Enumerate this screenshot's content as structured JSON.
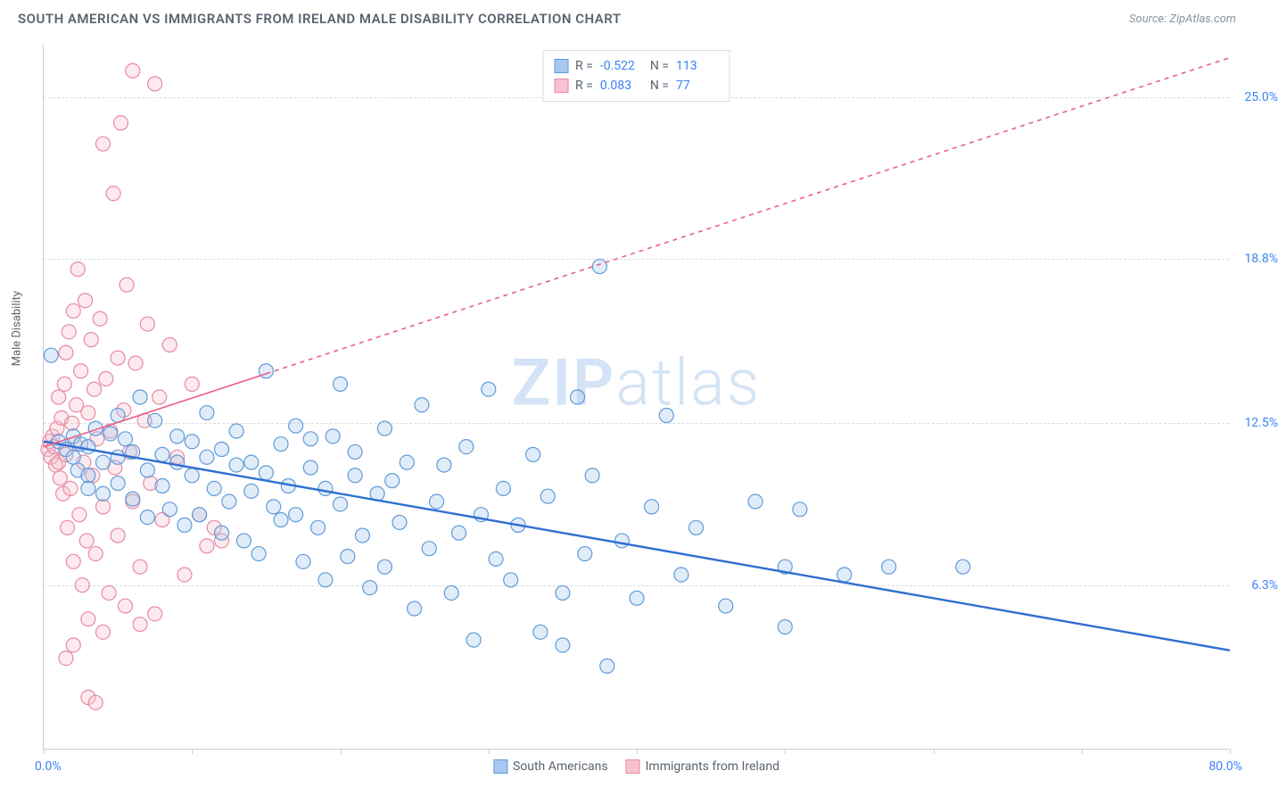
{
  "title": "SOUTH AMERICAN VS IMMIGRANTS FROM IRELAND MALE DISABILITY CORRELATION CHART",
  "source": "Source: ZipAtlas.com",
  "watermark_bold": "ZIP",
  "watermark_light": "atlas",
  "y_axis_title": "Male Disability",
  "x_min_label": "0.0%",
  "x_max_label": "80.0%",
  "chart": {
    "type": "scatter",
    "xlim": [
      0,
      80
    ],
    "ylim": [
      0,
      27
    ],
    "y_gridlines": [
      6.3,
      12.5,
      18.8,
      25.0
    ],
    "y_tick_labels": [
      "6.3%",
      "12.5%",
      "18.8%",
      "25.0%"
    ],
    "x_ticks": [
      0,
      10,
      20,
      30,
      40,
      50,
      60,
      70,
      80
    ],
    "background_color": "#ffffff",
    "grid_color": "#d8dce2",
    "axis_color": "#c8ccd2",
    "label_color": "#3b82f6",
    "marker_radius": 8,
    "marker_stroke_width": 1.2,
    "marker_fill_opacity": 0.35,
    "series": [
      {
        "name": "South Americans",
        "color_fill": "#a9c8ef",
        "color_stroke": "#5f9bd8",
        "R": "-0.522",
        "N": "113",
        "trend": {
          "x1": 0,
          "y1": 11.8,
          "x2": 80,
          "y2": 3.8,
          "stroke": "#2f6fd1",
          "width": 2.4,
          "dash": ""
        },
        "points": [
          [
            0.5,
            15.1
          ],
          [
            1,
            11.8
          ],
          [
            1.5,
            11.5
          ],
          [
            2,
            11.2
          ],
          [
            2,
            12.0
          ],
          [
            2.3,
            10.7
          ],
          [
            2.5,
            11.7
          ],
          [
            3,
            11.6
          ],
          [
            3,
            10.5
          ],
          [
            3.5,
            12.3
          ],
          [
            4,
            11.0
          ],
          [
            4,
            9.8
          ],
          [
            4.5,
            12.1
          ],
          [
            5,
            11.2
          ],
          [
            5,
            10.2
          ],
          [
            5.5,
            11.9
          ],
          [
            6,
            9.6
          ],
          [
            6,
            11.4
          ],
          [
            6.5,
            13.5
          ],
          [
            7,
            10.7
          ],
          [
            7,
            8.9
          ],
          [
            7.5,
            12.6
          ],
          [
            8,
            11.3
          ],
          [
            8,
            10.1
          ],
          [
            8.5,
            9.2
          ],
          [
            9,
            12.0
          ],
          [
            9,
            11.0
          ],
          [
            9.5,
            8.6
          ],
          [
            10,
            10.5
          ],
          [
            10,
            11.8
          ],
          [
            10.5,
            9.0
          ],
          [
            11,
            11.2
          ],
          [
            11,
            12.9
          ],
          [
            11.5,
            10.0
          ],
          [
            12,
            8.3
          ],
          [
            12,
            11.5
          ],
          [
            12.5,
            9.5
          ],
          [
            13,
            10.9
          ],
          [
            13,
            12.2
          ],
          [
            13.5,
            8.0
          ],
          [
            14,
            11.0
          ],
          [
            14,
            9.9
          ],
          [
            14.5,
            7.5
          ],
          [
            15,
            14.5
          ],
          [
            15,
            10.6
          ],
          [
            15.5,
            9.3
          ],
          [
            16,
            11.7
          ],
          [
            16,
            8.8
          ],
          [
            16.5,
            10.1
          ],
          [
            17,
            12.4
          ],
          [
            17,
            9.0
          ],
          [
            17.5,
            7.2
          ],
          [
            18,
            10.8
          ],
          [
            18,
            11.9
          ],
          [
            18.5,
            8.5
          ],
          [
            19,
            6.5
          ],
          [
            19,
            10.0
          ],
          [
            19.5,
            12.0
          ],
          [
            20,
            14.0
          ],
          [
            20,
            9.4
          ],
          [
            20.5,
            7.4
          ],
          [
            21,
            10.5
          ],
          [
            21,
            11.4
          ],
          [
            21.5,
            8.2
          ],
          [
            22,
            6.2
          ],
          [
            22.5,
            9.8
          ],
          [
            23,
            12.3
          ],
          [
            23,
            7.0
          ],
          [
            23.5,
            10.3
          ],
          [
            24,
            8.7
          ],
          [
            24.5,
            11.0
          ],
          [
            25,
            5.4
          ],
          [
            25.5,
            13.2
          ],
          [
            26,
            7.7
          ],
          [
            26.5,
            9.5
          ],
          [
            27,
            10.9
          ],
          [
            27.5,
            6.0
          ],
          [
            28,
            8.3
          ],
          [
            28.5,
            11.6
          ],
          [
            29,
            4.2
          ],
          [
            29.5,
            9.0
          ],
          [
            30,
            13.8
          ],
          [
            30.5,
            7.3
          ],
          [
            31,
            10.0
          ],
          [
            31.5,
            6.5
          ],
          [
            32,
            8.6
          ],
          [
            33,
            11.3
          ],
          [
            33.5,
            4.5
          ],
          [
            34,
            9.7
          ],
          [
            35,
            6.0
          ],
          [
            35,
            4.0
          ],
          [
            36,
            13.5
          ],
          [
            36.5,
            7.5
          ],
          [
            37,
            10.5
          ],
          [
            37.5,
            18.5
          ],
          [
            38,
            3.2
          ],
          [
            39,
            8.0
          ],
          [
            40,
            5.8
          ],
          [
            41,
            9.3
          ],
          [
            42,
            12.8
          ],
          [
            43,
            6.7
          ],
          [
            44,
            8.5
          ],
          [
            46,
            5.5
          ],
          [
            48,
            9.5
          ],
          [
            50,
            7.0
          ],
          [
            51,
            9.2
          ],
          [
            54,
            6.7
          ],
          [
            57,
            7.0
          ],
          [
            62,
            7.0
          ],
          [
            50,
            4.7
          ],
          [
            3.0,
            10.0
          ],
          [
            5.0,
            12.8
          ]
        ]
      },
      {
        "name": "Immigrants from Ireland",
        "color_fill": "#f6c2cf",
        "color_stroke": "#e88aa3",
        "R": "0.083",
        "N": "77",
        "trend": {
          "x1": 0,
          "y1": 11.6,
          "x2": 80,
          "y2": 26.5,
          "stroke": "#e75f86",
          "width": 1.6,
          "dash": "5,5",
          "solid_until_x": 15
        },
        "points": [
          [
            0.3,
            11.5
          ],
          [
            0.4,
            11.8
          ],
          [
            0.5,
            11.2
          ],
          [
            0.6,
            12.0
          ],
          [
            0.7,
            11.6
          ],
          [
            0.8,
            10.9
          ],
          [
            0.9,
            12.3
          ],
          [
            1.0,
            11.0
          ],
          [
            1.0,
            13.5
          ],
          [
            1.1,
            10.4
          ],
          [
            1.2,
            12.7
          ],
          [
            1.3,
            9.8
          ],
          [
            1.4,
            14.0
          ],
          [
            1.5,
            11.3
          ],
          [
            1.5,
            15.2
          ],
          [
            1.6,
            8.5
          ],
          [
            1.7,
            16.0
          ],
          [
            1.8,
            10.0
          ],
          [
            1.9,
            12.5
          ],
          [
            2.0,
            16.8
          ],
          [
            2.0,
            7.2
          ],
          [
            2.1,
            11.7
          ],
          [
            2.2,
            13.2
          ],
          [
            2.3,
            18.4
          ],
          [
            2.4,
            9.0
          ],
          [
            2.5,
            14.5
          ],
          [
            2.6,
            6.3
          ],
          [
            2.7,
            11.0
          ],
          [
            2.8,
            17.2
          ],
          [
            2.9,
            8.0
          ],
          [
            3.0,
            12.9
          ],
          [
            3.0,
            5.0
          ],
          [
            3.2,
            15.7
          ],
          [
            3.3,
            10.5
          ],
          [
            3.4,
            13.8
          ],
          [
            3.5,
            7.5
          ],
          [
            3.6,
            11.9
          ],
          [
            3.8,
            16.5
          ],
          [
            4.0,
            9.3
          ],
          [
            4.0,
            23.2
          ],
          [
            4.2,
            14.2
          ],
          [
            4.4,
            6.0
          ],
          [
            4.5,
            12.2
          ],
          [
            4.7,
            21.3
          ],
          [
            4.8,
            10.8
          ],
          [
            5.0,
            15.0
          ],
          [
            5.0,
            8.2
          ],
          [
            5.2,
            24.0
          ],
          [
            5.4,
            13.0
          ],
          [
            5.6,
            17.8
          ],
          [
            5.8,
            11.4
          ],
          [
            6.0,
            26.0
          ],
          [
            6.0,
            9.5
          ],
          [
            6.2,
            14.8
          ],
          [
            6.5,
            7.0
          ],
          [
            6.8,
            12.6
          ],
          [
            7.0,
            16.3
          ],
          [
            7.2,
            10.2
          ],
          [
            7.5,
            25.5
          ],
          [
            7.8,
            13.5
          ],
          [
            8.0,
            8.8
          ],
          [
            8.5,
            15.5
          ],
          [
            9.0,
            11.2
          ],
          [
            9.5,
            6.7
          ],
          [
            10.0,
            14.0
          ],
          [
            10.5,
            9.0
          ],
          [
            11.0,
            7.8
          ],
          [
            3.0,
            2.0
          ],
          [
            3.5,
            1.8
          ],
          [
            4.0,
            4.5
          ],
          [
            2.0,
            4.0
          ],
          [
            1.5,
            3.5
          ],
          [
            11.5,
            8.5
          ],
          [
            12.0,
            8.0
          ],
          [
            5.5,
            5.5
          ],
          [
            6.5,
            4.8
          ],
          [
            7.5,
            5.2
          ]
        ]
      }
    ]
  },
  "stats_labels": {
    "R": "R =",
    "N": "N ="
  },
  "legend": {
    "series1": "South Americans",
    "series2": "Immigrants from Ireland"
  }
}
